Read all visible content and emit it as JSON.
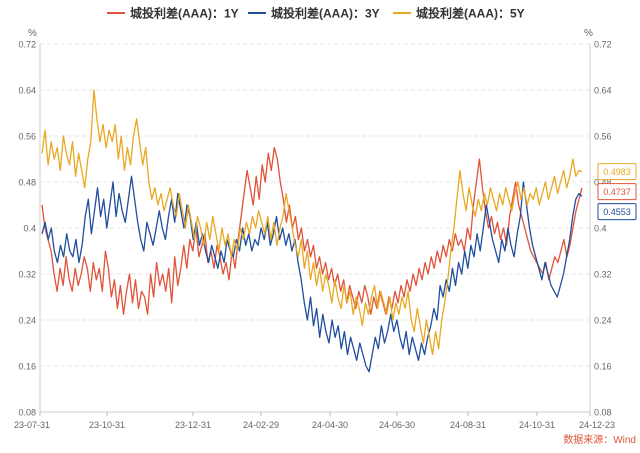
{
  "chart_data": {
    "type": "line",
    "unit_left": "%",
    "unit_right": "%",
    "ylim": [
      0.08,
      0.72
    ],
    "y_ticks": [
      "0.72",
      "0.64",
      "0.56",
      "0.48",
      "0.4",
      "0.32",
      "0.24",
      "0.16",
      "0.08"
    ],
    "x_ticks": [
      "23-07-31",
      "23-10-31",
      "23-12-31",
      "24-02-29",
      "24-04-30",
      "24-06-30",
      "24-08-31",
      "24-10-31",
      "24-12-23"
    ],
    "grid": true,
    "legend_position": "top-center",
    "source": "数据来源：Wind",
    "series": [
      {
        "name": "城投利差(AAA)：1Y",
        "color": "#e0533a",
        "end_label": "0.4737",
        "values": [
          0.44,
          0.4,
          0.38,
          0.36,
          0.32,
          0.29,
          0.33,
          0.3,
          0.35,
          0.31,
          0.29,
          0.33,
          0.3,
          0.32,
          0.35,
          0.33,
          0.29,
          0.34,
          0.31,
          0.33,
          0.29,
          0.36,
          0.33,
          0.28,
          0.31,
          0.26,
          0.3,
          0.25,
          0.29,
          0.32,
          0.27,
          0.31,
          0.26,
          0.29,
          0.28,
          0.25,
          0.32,
          0.28,
          0.34,
          0.3,
          0.32,
          0.29,
          0.33,
          0.27,
          0.35,
          0.3,
          0.33,
          0.37,
          0.33,
          0.38,
          0.36,
          0.4,
          0.35,
          0.37,
          0.39,
          0.34,
          0.36,
          0.33,
          0.37,
          0.35,
          0.32,
          0.34,
          0.31,
          0.36,
          0.33,
          0.38,
          0.42,
          0.46,
          0.5,
          0.47,
          0.44,
          0.49,
          0.45,
          0.51,
          0.48,
          0.53,
          0.5,
          0.54,
          0.52,
          0.48,
          0.45,
          0.41,
          0.44,
          0.4,
          0.42,
          0.38,
          0.4,
          0.36,
          0.38,
          0.35,
          0.37,
          0.33,
          0.35,
          0.32,
          0.34,
          0.31,
          0.33,
          0.3,
          0.32,
          0.29,
          0.31,
          0.27,
          0.3,
          0.28,
          0.26,
          0.29,
          0.27,
          0.3,
          0.28,
          0.25,
          0.28,
          0.26,
          0.29,
          0.27,
          0.25,
          0.28,
          0.26,
          0.29,
          0.27,
          0.3,
          0.28,
          0.31,
          0.29,
          0.32,
          0.3,
          0.33,
          0.31,
          0.34,
          0.32,
          0.35,
          0.33,
          0.36,
          0.34,
          0.37,
          0.35,
          0.38,
          0.36,
          0.39,
          0.37,
          0.38,
          0.36,
          0.4,
          0.38,
          0.44,
          0.48,
          0.52,
          0.47,
          0.43,
          0.4,
          0.42,
          0.39,
          0.41,
          0.38,
          0.4,
          0.37,
          0.42,
          0.45,
          0.48,
          0.44,
          0.42,
          0.4,
          0.38,
          0.36,
          0.35,
          0.34,
          0.33,
          0.32,
          0.34,
          0.31,
          0.33,
          0.35,
          0.34,
          0.36,
          0.38,
          0.35,
          0.37,
          0.4,
          0.43,
          0.45,
          0.47
        ]
      },
      {
        "name": "城投利差(AAA)：3Y",
        "color": "#1f4e9e",
        "end_label": "0.4553",
        "values": [
          0.39,
          0.41,
          0.38,
          0.4,
          0.36,
          0.34,
          0.37,
          0.35,
          0.39,
          0.36,
          0.35,
          0.38,
          0.34,
          0.37,
          0.42,
          0.45,
          0.39,
          0.43,
          0.47,
          0.42,
          0.45,
          0.4,
          0.44,
          0.48,
          0.42,
          0.46,
          0.43,
          0.41,
          0.45,
          0.49,
          0.45,
          0.41,
          0.38,
          0.36,
          0.41,
          0.39,
          0.37,
          0.4,
          0.43,
          0.4,
          0.38,
          0.42,
          0.45,
          0.41,
          0.46,
          0.43,
          0.4,
          0.44,
          0.42,
          0.38,
          0.41,
          0.37,
          0.39,
          0.36,
          0.34,
          0.37,
          0.35,
          0.33,
          0.36,
          0.34,
          0.38,
          0.36,
          0.35,
          0.38,
          0.36,
          0.4,
          0.37,
          0.39,
          0.36,
          0.38,
          0.37,
          0.4,
          0.38,
          0.41,
          0.37,
          0.39,
          0.42,
          0.38,
          0.4,
          0.37,
          0.39,
          0.36,
          0.38,
          0.34,
          0.31,
          0.27,
          0.24,
          0.28,
          0.23,
          0.26,
          0.21,
          0.25,
          0.22,
          0.2,
          0.24,
          0.21,
          0.23,
          0.19,
          0.22,
          0.18,
          0.21,
          0.19,
          0.17,
          0.2,
          0.18,
          0.16,
          0.15,
          0.18,
          0.21,
          0.19,
          0.23,
          0.2,
          0.22,
          0.25,
          0.22,
          0.24,
          0.21,
          0.19,
          0.22,
          0.18,
          0.21,
          0.19,
          0.17,
          0.2,
          0.18,
          0.21,
          0.23,
          0.26,
          0.24,
          0.3,
          0.28,
          0.31,
          0.29,
          0.33,
          0.3,
          0.34,
          0.32,
          0.36,
          0.33,
          0.37,
          0.35,
          0.39,
          0.36,
          0.4,
          0.44,
          0.41,
          0.38,
          0.36,
          0.34,
          0.38,
          0.36,
          0.4,
          0.37,
          0.35,
          0.39,
          0.42,
          0.48,
          0.44,
          0.4,
          0.37,
          0.35,
          0.33,
          0.31,
          0.34,
          0.32,
          0.3,
          0.29,
          0.28,
          0.3,
          0.32,
          0.35,
          0.38,
          0.42,
          0.45,
          0.46,
          0.455
        ]
      },
      {
        "name": "城投利差(AAA)：5Y",
        "color": "#e9a822",
        "end_label": "0.4983",
        "values": [
          0.53,
          0.57,
          0.51,
          0.55,
          0.52,
          0.54,
          0.5,
          0.56,
          0.53,
          0.51,
          0.55,
          0.49,
          0.53,
          0.5,
          0.47,
          0.52,
          0.55,
          0.64,
          0.59,
          0.55,
          0.58,
          0.54,
          0.57,
          0.55,
          0.58,
          0.52,
          0.56,
          0.5,
          0.54,
          0.51,
          0.56,
          0.59,
          0.55,
          0.51,
          0.54,
          0.48,
          0.45,
          0.47,
          0.44,
          0.46,
          0.43,
          0.45,
          0.47,
          0.44,
          0.42,
          0.46,
          0.43,
          0.4,
          0.44,
          0.41,
          0.38,
          0.42,
          0.4,
          0.37,
          0.41,
          0.38,
          0.42,
          0.39,
          0.36,
          0.4,
          0.37,
          0.39,
          0.35,
          0.38,
          0.36,
          0.4,
          0.38,
          0.41,
          0.39,
          0.42,
          0.4,
          0.43,
          0.41,
          0.39,
          0.42,
          0.38,
          0.41,
          0.37,
          0.4,
          0.42,
          0.46,
          0.43,
          0.4,
          0.37,
          0.35,
          0.38,
          0.33,
          0.36,
          0.31,
          0.34,
          0.3,
          0.33,
          0.29,
          0.32,
          0.3,
          0.27,
          0.31,
          0.28,
          0.26,
          0.3,
          0.27,
          0.29,
          0.25,
          0.28,
          0.26,
          0.23,
          0.27,
          0.25,
          0.28,
          0.3,
          0.26,
          0.29,
          0.27,
          0.25,
          0.28,
          0.24,
          0.27,
          0.25,
          0.28,
          0.26,
          0.29,
          0.24,
          0.22,
          0.26,
          0.23,
          0.2,
          0.24,
          0.21,
          0.18,
          0.22,
          0.19,
          0.24,
          0.27,
          0.31,
          0.36,
          0.4,
          0.45,
          0.5,
          0.46,
          0.43,
          0.47,
          0.44,
          0.42,
          0.45,
          0.43,
          0.46,
          0.44,
          0.47,
          0.45,
          0.43,
          0.46,
          0.44,
          0.47,
          0.45,
          0.43,
          0.46,
          0.48,
          0.45,
          0.47,
          0.44,
          0.46,
          0.45,
          0.47,
          0.44,
          0.46,
          0.48,
          0.45,
          0.47,
          0.49,
          0.46,
          0.48,
          0.5,
          0.47,
          0.49,
          0.52,
          0.49,
          0.5,
          0.498
        ]
      }
    ]
  }
}
